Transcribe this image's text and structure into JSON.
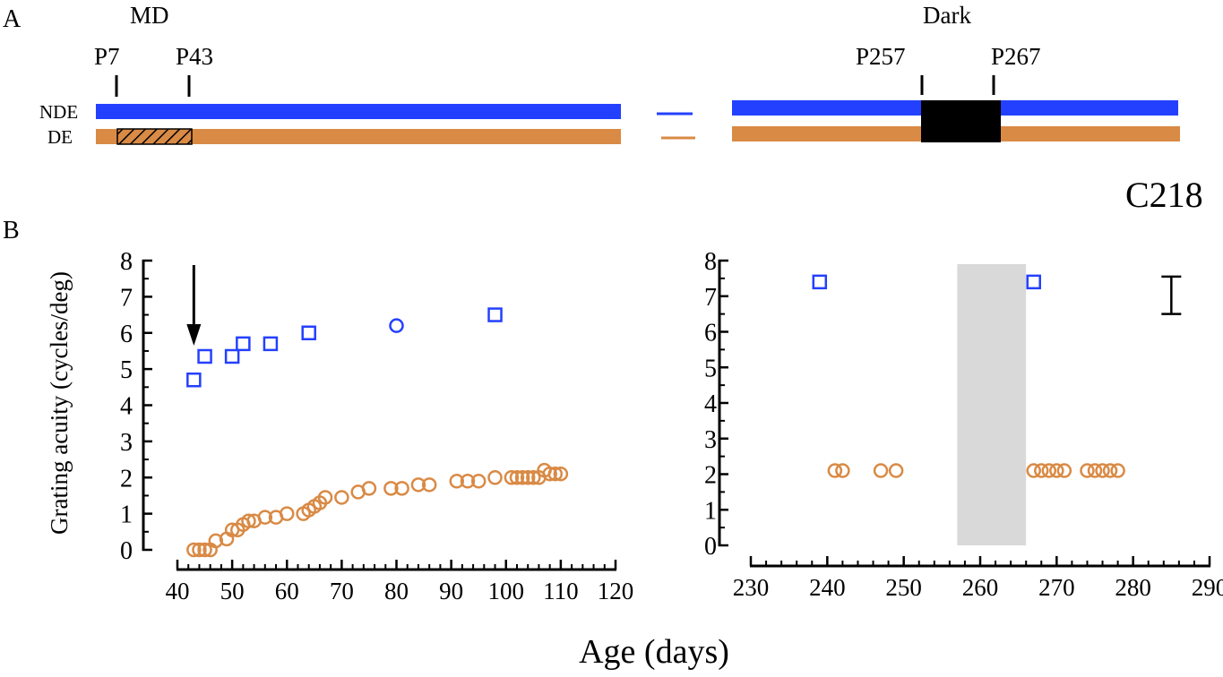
{
  "panel_a": {
    "label": "A",
    "md_label": "MD",
    "dark_label": "Dark",
    "markers_left": [
      "P7",
      "P43"
    ],
    "markers_right": [
      "P257",
      "P267"
    ],
    "row_labels": [
      "NDE",
      "DE"
    ],
    "colors": {
      "nde": "#2440ff",
      "de": "#d98a45",
      "dark": "#000000"
    }
  },
  "panel_b": {
    "label": "B",
    "animal_id": "C218",
    "ylabel": "Grating acuity (cycles/deg)",
    "xlabel": "Age (days)"
  },
  "chart_data": [
    {
      "type": "scatter",
      "title": "",
      "xlabel": "Age (days)",
      "ylabel": "Grating acuity (cycles/deg)",
      "xlim": [
        40,
        120
      ],
      "ylim": [
        0,
        8
      ],
      "x_ticks": [
        40,
        50,
        60,
        70,
        80,
        90,
        100,
        110,
        120
      ],
      "y_ticks": [
        0,
        1,
        2,
        3,
        4,
        5,
        6,
        7,
        8
      ],
      "arrow_at_x": 43,
      "series": [
        {
          "eye": "NDE",
          "color": "#2440ff",
          "marker": "square",
          "points": [
            [
              43,
              4.7
            ],
            [
              45,
              5.35
            ],
            [
              50,
              5.35
            ],
            [
              52,
              5.7
            ],
            [
              57,
              5.7
            ],
            [
              64,
              6.0
            ],
            [
              98,
              6.5
            ]
          ]
        },
        {
          "eye": "NDE",
          "color": "#2440ff",
          "marker": "circle",
          "points": [
            [
              80,
              6.2
            ]
          ]
        },
        {
          "eye": "DE",
          "color": "#d98a45",
          "marker": "circle",
          "points": [
            [
              43,
              0.0
            ],
            [
              44,
              0.0
            ],
            [
              45,
              0.0
            ],
            [
              46,
              0.0
            ],
            [
              47,
              0.25
            ],
            [
              49,
              0.3
            ],
            [
              50,
              0.55
            ],
            [
              51,
              0.55
            ],
            [
              52,
              0.7
            ],
            [
              53,
              0.8
            ],
            [
              54,
              0.8
            ],
            [
              56,
              0.9
            ],
            [
              58,
              0.9
            ],
            [
              60,
              1.0
            ],
            [
              63,
              1.0
            ],
            [
              64,
              1.1
            ],
            [
              65,
              1.2
            ],
            [
              66,
              1.3
            ],
            [
              67,
              1.45
            ],
            [
              70,
              1.45
            ],
            [
              73,
              1.6
            ],
            [
              75,
              1.7
            ],
            [
              79,
              1.7
            ],
            [
              81,
              1.7
            ],
            [
              84,
              1.8
            ],
            [
              86,
              1.8
            ],
            [
              91,
              1.9
            ],
            [
              93,
              1.9
            ],
            [
              95,
              1.9
            ],
            [
              98,
              2.0
            ],
            [
              101,
              2.0
            ],
            [
              102,
              2.0
            ],
            [
              103,
              2.0
            ],
            [
              104,
              2.0
            ],
            [
              105,
              2.0
            ],
            [
              106,
              2.0
            ],
            [
              107,
              2.2
            ],
            [
              108,
              2.1
            ],
            [
              109,
              2.1
            ],
            [
              110,
              2.1
            ]
          ]
        }
      ]
    },
    {
      "type": "scatter",
      "title": "",
      "xlabel": "Age (days)",
      "ylabel": "",
      "xlim": [
        230,
        290
      ],
      "ylim": [
        0,
        8
      ],
      "x_ticks": [
        230,
        240,
        250,
        260,
        270,
        280,
        290
      ],
      "y_ticks": [
        0,
        1,
        2,
        3,
        4,
        5,
        6,
        7,
        8
      ],
      "shaded_span": [
        257,
        266
      ],
      "error_bar": {
        "x": 285,
        "low": 6.5,
        "high": 7.55
      },
      "series": [
        {
          "eye": "NDE",
          "color": "#2440ff",
          "marker": "square",
          "points": [
            [
              239,
              7.4
            ],
            [
              267,
              7.4
            ]
          ]
        },
        {
          "eye": "DE",
          "color": "#d98a45",
          "marker": "circle",
          "points": [
            [
              241,
              2.1
            ],
            [
              242,
              2.1
            ],
            [
              247,
              2.1
            ],
            [
              249,
              2.1
            ],
            [
              267,
              2.1
            ],
            [
              268,
              2.1
            ],
            [
              269,
              2.1
            ],
            [
              270,
              2.1
            ],
            [
              271,
              2.1
            ],
            [
              274,
              2.1
            ],
            [
              275,
              2.1
            ],
            [
              276,
              2.1
            ],
            [
              277,
              2.1
            ],
            [
              278,
              2.1
            ]
          ]
        }
      ]
    }
  ]
}
